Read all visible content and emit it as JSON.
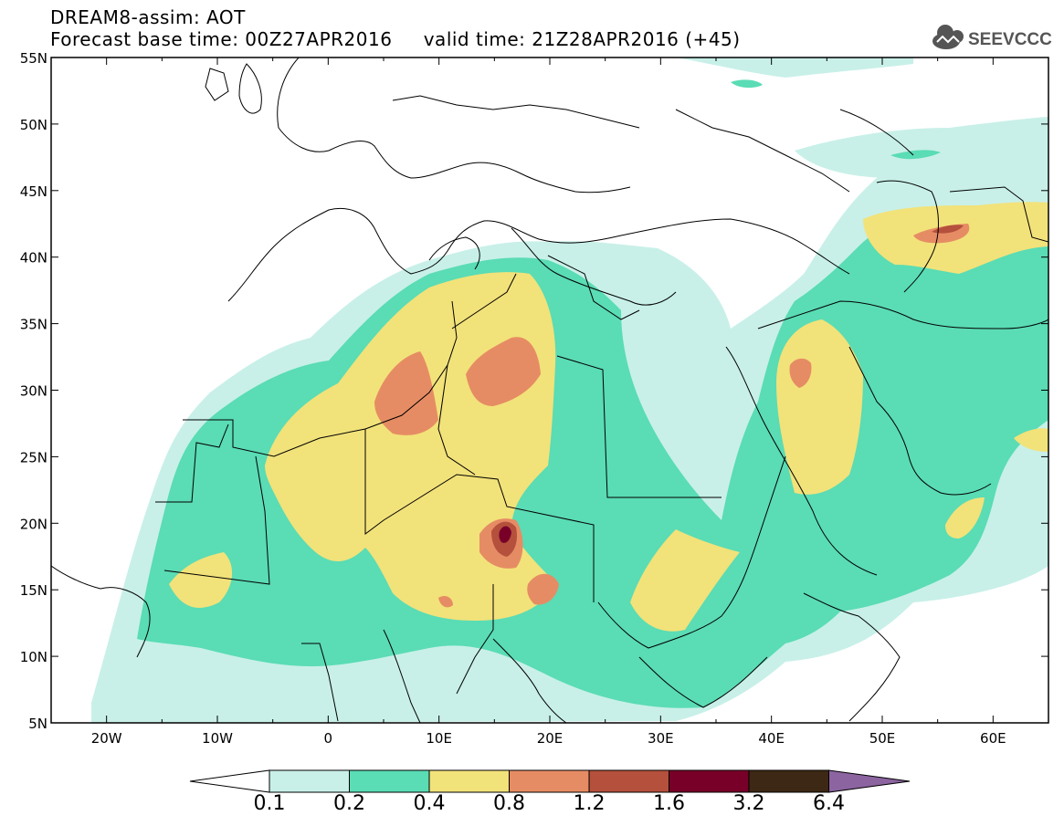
{
  "header": {
    "line1": "DREAM8-assim: AOT",
    "line2": "Forecast base time: 00Z27APR2016     valid time: 21Z28APR2016 (+45)"
  },
  "logo": {
    "text": "SEEVCCC",
    "icon": "cloud-icon",
    "color": "#555555"
  },
  "map": {
    "lon_range": [
      -25,
      65
    ],
    "lat_range": [
      5,
      55
    ],
    "lat_ticks": [
      {
        "value": 55,
        "label": "55N"
      },
      {
        "value": 50,
        "label": "50N"
      },
      {
        "value": 45,
        "label": "45N"
      },
      {
        "value": 40,
        "label": "40N"
      },
      {
        "value": 35,
        "label": "35N"
      },
      {
        "value": 30,
        "label": "30N"
      },
      {
        "value": 25,
        "label": "25N"
      },
      {
        "value": 20,
        "label": "20N"
      },
      {
        "value": 15,
        "label": "15N"
      },
      {
        "value": 10,
        "label": "10N"
      },
      {
        "value": 5,
        "label": "5N"
      }
    ],
    "lon_ticks": [
      {
        "value": -20,
        "label": "20W"
      },
      {
        "value": -10,
        "label": "10W"
      },
      {
        "value": 0,
        "label": "0"
      },
      {
        "value": 10,
        "label": "10E"
      },
      {
        "value": 20,
        "label": "20E"
      },
      {
        "value": 30,
        "label": "30E"
      },
      {
        "value": 40,
        "label": "40E"
      },
      {
        "value": 50,
        "label": "50E"
      },
      {
        "value": 60,
        "label": "60E"
      }
    ]
  },
  "colorbar": {
    "labels": [
      "0.1",
      "0.2",
      "0.4",
      "0.8",
      "1.2",
      "1.6",
      "3.2",
      "6.4"
    ],
    "colors": [
      "#ffffff",
      "#c8f0e8",
      "#5adcb4",
      "#f2e27a",
      "#e68c64",
      "#b4503c",
      "#780028",
      "#3c2814",
      "#8c64a0"
    ]
  }
}
